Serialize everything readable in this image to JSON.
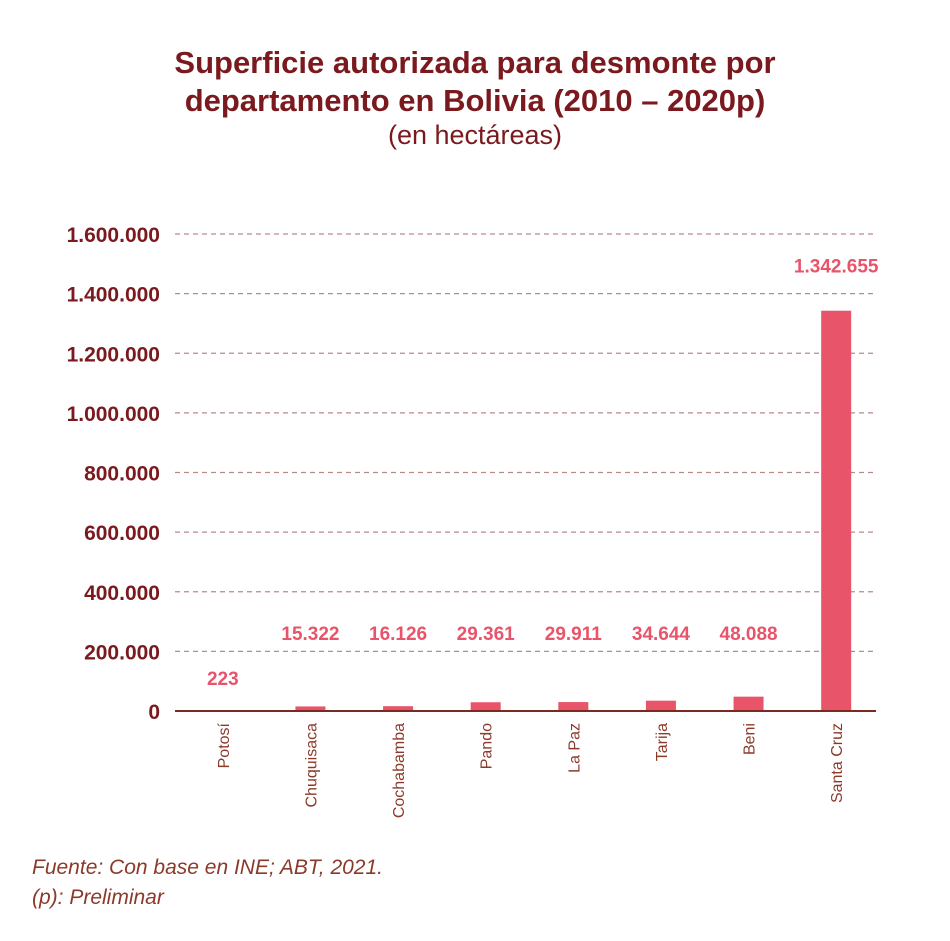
{
  "chart_data": {
    "type": "bar",
    "title_line1": "Superficie autorizada para desmonte por",
    "title_line2": "departamento en Bolivia (2010 – 2020p)",
    "subtitle": "(en hectáreas)",
    "categories": [
      "Potosí",
      "Chuquisaca",
      "Cochabamba",
      "Pando",
      "La Paz",
      "Tarija",
      "Beni",
      "Santa Cruz"
    ],
    "values": [
      223,
      15322,
      16126,
      29361,
      29911,
      34644,
      48088,
      1342655
    ],
    "value_labels": [
      "223",
      "15.322",
      "16.126",
      "29.361",
      "29.911",
      "34.644",
      "48.088",
      "1.342.655"
    ],
    "yticks": [
      0,
      200000,
      400000,
      600000,
      800000,
      1000000,
      1200000,
      1400000,
      1600000
    ],
    "ytick_labels": [
      "0",
      "200.000",
      "400.000",
      "600.000",
      "800.000",
      "1.000.000",
      "1.200.000",
      "1.400.000",
      "1.600.000"
    ],
    "ylim": [
      0,
      1600000
    ],
    "grid": true,
    "xlabel": "",
    "ylabel": "",
    "colors": {
      "bar": "#e8546a",
      "title": "#7a1a1e",
      "axis": "#7a2a1e",
      "grid": "#b88a8a"
    }
  },
  "notes": {
    "source": "Fuente: Con base en INE; ABT, 2021.",
    "preliminary": "(p): Preliminar"
  }
}
